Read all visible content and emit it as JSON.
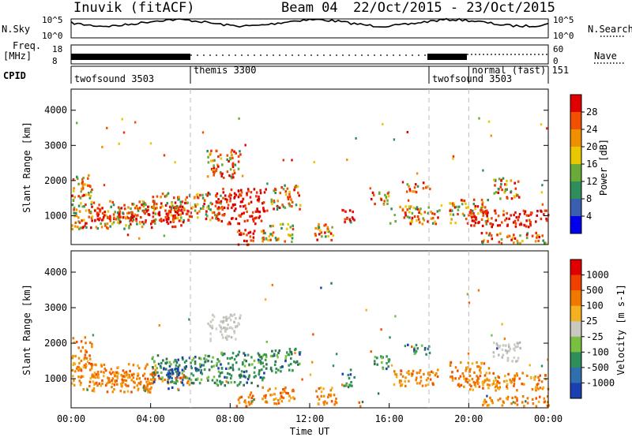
{
  "header": {
    "station": "Inuvik (fitACF)",
    "beam": "Beam 04",
    "date_range": "22/Oct/2015 - 23/Oct/2015"
  },
  "top_panels": {
    "nsky_label": "N.Sky",
    "nsky_ticks": [
      "10^5",
      "10^0"
    ],
    "nsearch_label": "N.Search",
    "nsearch_ticks": [
      "10^5",
      "10^0"
    ],
    "freq_label_1": "Freq.",
    "freq_label_2": "[MHz]",
    "freq_ticks": [
      "18",
      "8"
    ],
    "nave_label": "Nave",
    "nave_ticks": [
      "60",
      "0"
    ],
    "cpid_label": "CPID",
    "cpid_segments": [
      {
        "label": "twofsound 3503",
        "start_h": 0,
        "end_h": 6
      },
      {
        "label": "themis 3300",
        "start_h": 6,
        "end_h": 18
      },
      {
        "label": "twofsound 3503",
        "start_h": 18,
        "end_h": 20
      },
      {
        "label": "normal (fast) 151",
        "start_h": 20,
        "end_h": 24
      }
    ]
  },
  "chart_data": [
    {
      "type": "heatmap",
      "name": "Power",
      "ylabel": "Slant Range [km]",
      "ylim": [
        180,
        4600
      ],
      "yticks": [
        "1000",
        "2000",
        "3000",
        "4000"
      ],
      "xlim_hours": [
        0,
        24
      ],
      "colorbar": {
        "label": "Power [dB]",
        "ticks": [
          "4",
          "8",
          "12",
          "16",
          "20",
          "24",
          "28"
        ],
        "colors": [
          "#0000ee",
          "#3a5fb0",
          "#2f8f5a",
          "#6aaa3a",
          "#e8c800",
          "#f09000",
          "#f05000",
          "#e00000"
        ]
      }
    },
    {
      "type": "heatmap",
      "name": "Velocity",
      "ylabel": "Slant Range [km]",
      "ylim": [
        180,
        4600
      ],
      "yticks": [
        "1000",
        "2000",
        "3000",
        "4000"
      ],
      "xlim_hours": [
        0,
        24
      ],
      "xticks": [
        "00:00",
        "04:00",
        "08:00",
        "12:00",
        "16:00",
        "20:00",
        "00:00"
      ],
      "xlabel": "Time UT",
      "colorbar": {
        "label": "Velocity [m s-1]",
        "ticks": [
          "1000",
          "500",
          "100",
          "25",
          "-25",
          "-100",
          "-500",
          "-1000"
        ],
        "colors": [
          "#1a3fb0",
          "#2f6fb0",
          "#2f8f5a",
          "#7ac040",
          "#c8c8c0",
          "#f5b020",
          "#f07800",
          "#f04000",
          "#e00000"
        ]
      }
    }
  ],
  "scatter_regions": [
    {
      "h0": 0.0,
      "h1": 4.2,
      "r0": 650,
      "r1": 1450,
      "p": "mix",
      "v": "orange"
    },
    {
      "h0": 1.0,
      "h1": 6.0,
      "r0": 850,
      "r1": 1200,
      "p": "red",
      "v": "orange"
    },
    {
      "h0": 4.0,
      "h1": 6.0,
      "r0": 900,
      "r1": 1700,
      "p": "mix",
      "v": "green"
    },
    {
      "h0": 4.8,
      "h1": 5.6,
      "r0": 700,
      "r1": 1300,
      "p": "red",
      "v": "blue"
    },
    {
      "h0": 6.0,
      "h1": 7.5,
      "r0": 900,
      "r1": 1700,
      "p": "mix",
      "v": "green"
    },
    {
      "h0": 6.8,
      "h1": 8.5,
      "r0": 2100,
      "r1": 2900,
      "p": "mix",
      "v": "grey"
    },
    {
      "h0": 7.2,
      "h1": 9.8,
      "r0": 800,
      "r1": 1800,
      "p": "red",
      "v": "green"
    },
    {
      "h0": 8.2,
      "h1": 9.2,
      "r0": 200,
      "r1": 650,
      "p": "red",
      "v": "orange"
    },
    {
      "h0": 9.5,
      "h1": 11.2,
      "r0": 300,
      "r1": 800,
      "p": "mix",
      "v": "orange"
    },
    {
      "h0": 10.0,
      "h1": 11.5,
      "r0": 1200,
      "r1": 1900,
      "p": "mix",
      "v": "green"
    },
    {
      "h0": 12.2,
      "h1": 13.4,
      "r0": 300,
      "r1": 800,
      "p": "mix",
      "v": "orange"
    },
    {
      "h0": 13.6,
      "h1": 14.2,
      "r0": 800,
      "r1": 1300,
      "p": "red",
      "v": "green"
    },
    {
      "h0": 15.0,
      "h1": 16.0,
      "r0": 1300,
      "r1": 1700,
      "p": "mix",
      "v": "green"
    },
    {
      "h0": 16.0,
      "h1": 18.5,
      "r0": 800,
      "r1": 1300,
      "p": "mix",
      "v": "orange"
    },
    {
      "h0": 16.8,
      "h1": 18.0,
      "r0": 1700,
      "r1": 2000,
      "p": "mix",
      "v": "green"
    },
    {
      "h0": 19.0,
      "h1": 21.0,
      "r0": 800,
      "r1": 1500,
      "p": "mix",
      "v": "orange"
    },
    {
      "h0": 20.0,
      "h1": 24.0,
      "r0": 700,
      "r1": 1200,
      "p": "red",
      "v": "orange"
    },
    {
      "h0": 21.2,
      "h1": 22.6,
      "r0": 1500,
      "r1": 2100,
      "p": "mix",
      "v": "grey"
    },
    {
      "h0": 20.6,
      "h1": 24.0,
      "r0": 250,
      "r1": 550,
      "p": "mix",
      "v": "orange"
    },
    {
      "h0": 0.0,
      "h1": 1.0,
      "r0": 1300,
      "r1": 2200,
      "p": "mix",
      "v": "orange"
    }
  ]
}
